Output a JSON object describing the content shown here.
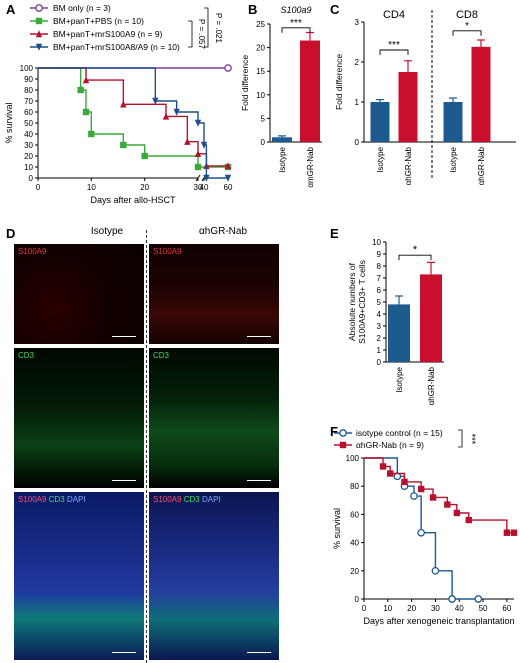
{
  "chart_data": [
    {
      "panel": "A",
      "type": "line",
      "subtype": "kaplan-meier",
      "ylabel": "% survival",
      "xlabel": "Days after allo-HSCT",
      "yticks": [
        0,
        10,
        20,
        30,
        40,
        50,
        60,
        70,
        80,
        90,
        100
      ],
      "xticks": [
        0,
        10,
        20,
        30,
        40,
        60
      ],
      "ylim": [
        0,
        100
      ],
      "xaxis_break": "30-40",
      "series": [
        {
          "name": "BM only (n = 3)",
          "color": "#7b3fa0",
          "marker": "circle-open",
          "points": [
            [
              0,
              100
            ],
            [
              60,
              100
            ]
          ]
        },
        {
          "name": "BM+panT+PBS (n = 10)",
          "color": "#3aa83a",
          "marker": "square",
          "points": [
            [
              0,
              100
            ],
            [
              8,
              100
            ],
            [
              8,
              80
            ],
            [
              9,
              80
            ],
            [
              9,
              60
            ],
            [
              10,
              60
            ],
            [
              10,
              40
            ],
            [
              16,
              40
            ],
            [
              16,
              30
            ],
            [
              20,
              30
            ],
            [
              20,
              20
            ],
            [
              30,
              20
            ],
            [
              30,
              10
            ],
            [
              60,
              10
            ]
          ]
        },
        {
          "name": "BM+panT+mrS100A9 (n = 9)",
          "color": "#b5122d",
          "marker": "triangle-up",
          "points": [
            [
              0,
              100
            ],
            [
              9,
              100
            ],
            [
              9,
              89
            ],
            [
              16,
              89
            ],
            [
              16,
              67
            ],
            [
              24,
              67
            ],
            [
              24,
              56
            ],
            [
              28,
              56
            ],
            [
              28,
              33
            ],
            [
              30,
              33
            ],
            [
              30,
              22
            ],
            [
              42,
              22
            ],
            [
              42,
              11
            ],
            [
              60,
              11
            ]
          ]
        },
        {
          "name": "BM+panT+mrS100A8/A9 (n = 10)",
          "color": "#1f4e8c",
          "marker": "triangle-down",
          "points": [
            [
              0,
              100
            ],
            [
              22,
              100
            ],
            [
              22,
              70
            ],
            [
              26,
              70
            ],
            [
              26,
              60
            ],
            [
              30,
              60
            ],
            [
              30,
              50
            ],
            [
              33,
              50
            ],
            [
              33,
              30
            ],
            [
              42,
              30
            ],
            [
              42,
              0
            ],
            [
              60,
              0
            ]
          ]
        }
      ],
      "annotations": [
        "P = .057",
        "P = .021"
      ]
    },
    {
      "panel": "B",
      "type": "bar",
      "title": "S100a9",
      "ylabel": "Fold difference",
      "categories": [
        "Isotype",
        "αmGR-Nab"
      ],
      "values": [
        1.0,
        21.5
      ],
      "errors": [
        0.3,
        1.7
      ],
      "colors": [
        "#1d5a8e",
        "#c8102e"
      ],
      "ylim": [
        0,
        25
      ],
      "yticks": [
        0,
        5,
        10,
        15,
        20,
        25
      ],
      "significance": "***"
    },
    {
      "panel": "C",
      "type": "bar",
      "ylabel": "Fold difference",
      "groups": [
        "CD4",
        "CD8"
      ],
      "categories": [
        "Isotype",
        "αhGR-Nab",
        "Isotype",
        "αhGR-Nab"
      ],
      "values": [
        1.0,
        1.75,
        1.0,
        2.38
      ],
      "errors": [
        0.06,
        0.28,
        0.1,
        0.17
      ],
      "colors": [
        "#1d5a8e",
        "#c8102e",
        "#1d5a8e",
        "#c8102e"
      ],
      "ylim": [
        0,
        3
      ],
      "yticks": [
        0,
        1,
        2,
        3
      ],
      "significance": [
        "***",
        "*"
      ]
    },
    {
      "panel": "E",
      "type": "bar",
      "ylabel": "Absolute numbers of S100A9+CD3+ T cells",
      "categories": [
        "Isotype",
        "αhGR-Nab"
      ],
      "values": [
        4.8,
        7.3
      ],
      "errors": [
        0.7,
        1.0
      ],
      "colors": [
        "#1d5a8e",
        "#c8102e"
      ],
      "ylim": [
        0,
        10
      ],
      "yticks": [
        0,
        1,
        2,
        3,
        4,
        5,
        6,
        7,
        8,
        9,
        10
      ],
      "significance": "*"
    },
    {
      "panel": "F",
      "type": "line",
      "subtype": "kaplan-meier",
      "ylabel": "% survival",
      "xlabel": "Days after xenogeneic transplantation",
      "xticks": [
        0,
        10,
        20,
        30,
        40,
        50,
        60
      ],
      "yticks": [
        0,
        20,
        40,
        60,
        80,
        100
      ],
      "ylim": [
        0,
        100
      ],
      "xlim": [
        0,
        63
      ],
      "series": [
        {
          "name": "isotype control (n = 15)",
          "color": "#1d5a8e",
          "marker": "circle-open",
          "points": [
            [
              0,
              100
            ],
            [
              14,
              100
            ],
            [
              14,
              87
            ],
            [
              17,
              87
            ],
            [
              17,
              80
            ],
            [
              21,
              80
            ],
            [
              21,
              73
            ],
            [
              24,
              73
            ],
            [
              24,
              47
            ],
            [
              30,
              47
            ],
            [
              30,
              20
            ],
            [
              37,
              20
            ],
            [
              37,
              0
            ],
            [
              48,
              0
            ]
          ]
        },
        {
          "name": "αhGR-Nab (n = 9)",
          "color": "#b5122d",
          "marker": "square",
          "points": [
            [
              0,
              100
            ],
            [
              8,
              100
            ],
            [
              8,
              94
            ],
            [
              11,
              94
            ],
            [
              11,
              89
            ],
            [
              17,
              89
            ],
            [
              17,
              83
            ],
            [
              24,
              83
            ],
            [
              24,
              78
            ],
            [
              29,
              78
            ],
            [
              29,
              72
            ],
            [
              35,
              72
            ],
            [
              35,
              67
            ],
            [
              39,
              67
            ],
            [
              39,
              61
            ],
            [
              44,
              61
            ],
            [
              44,
              56
            ],
            [
              60,
              56
            ],
            [
              60,
              47
            ],
            [
              63,
              47
            ]
          ]
        }
      ],
      "significance": "***"
    }
  ],
  "panel_labels": {
    "A": "A",
    "B": "B",
    "C": "C",
    "D": "D",
    "E": "E",
    "F": "F"
  },
  "microscopy": {
    "column_headers": [
      "Isotype",
      "αhGR-Nab"
    ],
    "row_labels": {
      "s100a9": "S100A9",
      "cd3": "CD3",
      "merge_s100a9": "S100A9",
      "merge_cd3": "CD3",
      "merge_dapi": "DAPI"
    }
  }
}
